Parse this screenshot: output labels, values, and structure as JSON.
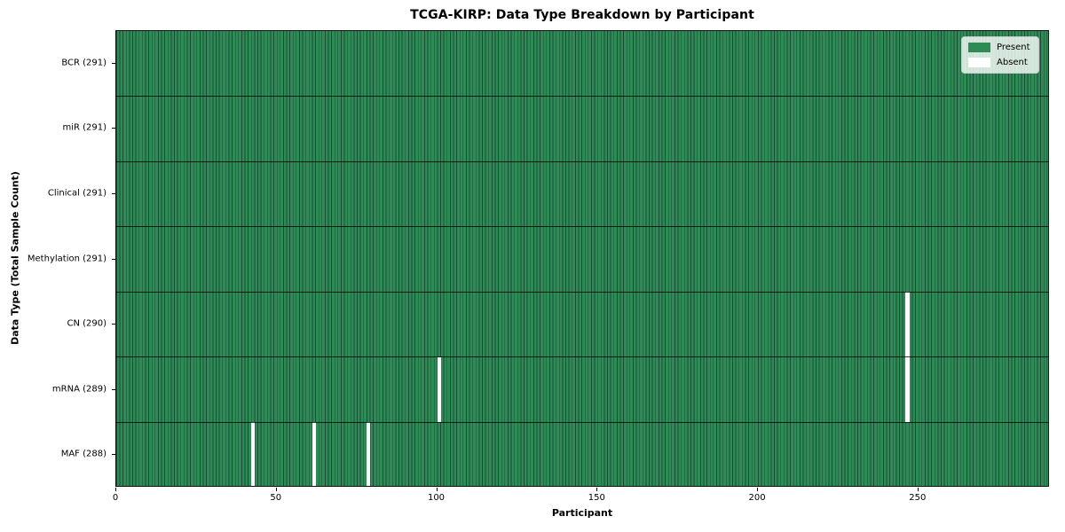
{
  "chart_data": {
    "type": "heatmap",
    "title": "TCGA-KIRP: Data Type Breakdown by Participant",
    "xlabel": "Participant",
    "ylabel": "Data Type (Total Sample Count)",
    "n_participants": 291,
    "x_ticks": [
      0,
      50,
      100,
      150,
      200,
      250
    ],
    "rows": [
      {
        "label": "BCR (291)",
        "data_type": "BCR",
        "total_samples": 291,
        "absent_participants": []
      },
      {
        "label": "miR (291)",
        "data_type": "miR",
        "total_samples": 291,
        "absent_participants": []
      },
      {
        "label": "Clinical (291)",
        "data_type": "Clinical",
        "total_samples": 291,
        "absent_participants": []
      },
      {
        "label": "Methylation (291)",
        "data_type": "Methylation",
        "total_samples": 291,
        "absent_participants": []
      },
      {
        "label": "CN (290)",
        "data_type": "CN",
        "total_samples": 290,
        "absent_participants": [
          246
        ]
      },
      {
        "label": "mRNA (289)",
        "data_type": "mRNA",
        "total_samples": 289,
        "absent_participants": [
          100,
          246
        ]
      },
      {
        "label": "MAF (288)",
        "data_type": "MAF",
        "total_samples": 288,
        "absent_participants": [
          42,
          61,
          78
        ]
      }
    ],
    "legend": [
      {
        "label": "Present",
        "color": "#2e8b57"
      },
      {
        "label": "Absent",
        "color": "#ffffff"
      }
    ],
    "legend_position": "upper right",
    "grid": false,
    "colors": {
      "present": "#2e8b57",
      "absent": "#ffffff",
      "cell_line": "rgba(0,0,0,0.45)",
      "row_line": "rgba(0,0,0,0.78)",
      "plot_border": "#111111",
      "text": "#000000"
    }
  }
}
